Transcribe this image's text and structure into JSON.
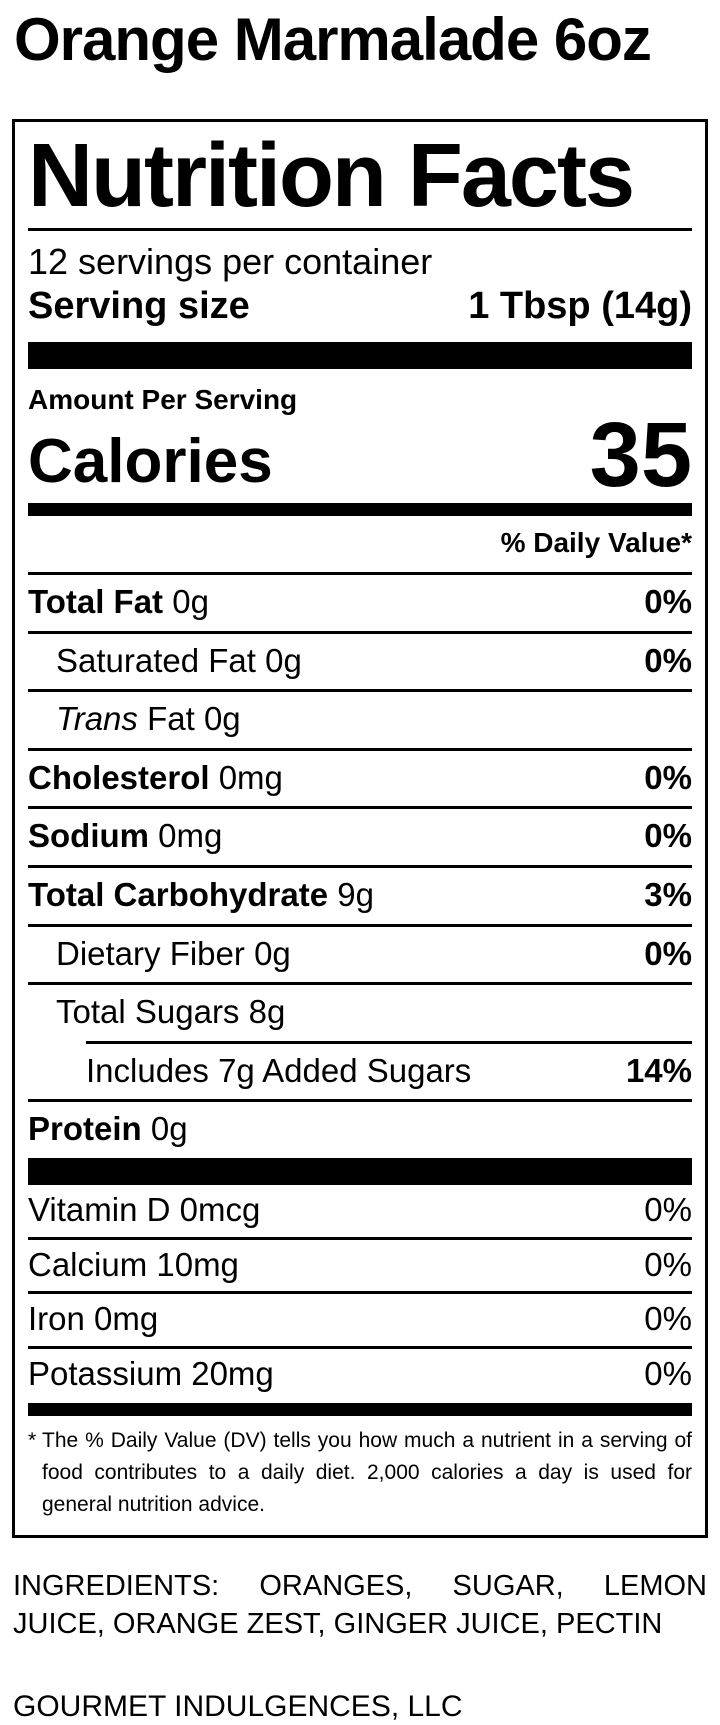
{
  "product": {
    "title": "Orange Marmalade 6oz"
  },
  "label": {
    "heading": "Nutrition Facts",
    "servings_per_container": "12 servings per container",
    "serving_size_label": "Serving size",
    "serving_size_value": "1 Tbsp (14g)",
    "amount_per_serving": "Amount Per Serving",
    "calories_label": "Calories",
    "calories_value": "35",
    "daily_value_header": "% Daily Value*",
    "rows": [
      {
        "label": "Total Fat",
        "amount": "0g",
        "dv": "0%",
        "indent": 0,
        "bold": true,
        "dv_bold": true,
        "rule": "full"
      },
      {
        "label": "Saturated Fat",
        "amount": "0g",
        "dv": "0%",
        "indent": 1,
        "bold": false,
        "dv_bold": true,
        "rule": "full"
      },
      {
        "label_italic": "Trans",
        "label": " Fat",
        "amount": "0g",
        "dv": "",
        "indent": 1,
        "bold": false,
        "dv_bold": false,
        "rule": "full"
      },
      {
        "label": "Cholesterol",
        "amount": "0mg",
        "dv": "0%",
        "indent": 0,
        "bold": true,
        "dv_bold": true,
        "rule": "full"
      },
      {
        "label": "Sodium",
        "amount": "0mg",
        "dv": "0%",
        "indent": 0,
        "bold": true,
        "dv_bold": true,
        "rule": "full"
      },
      {
        "label": "Total Carbohydrate",
        "amount": "9g",
        "dv": "3%",
        "indent": 0,
        "bold": true,
        "dv_bold": true,
        "rule": "full"
      },
      {
        "label": "Dietary Fiber",
        "amount": "0g",
        "dv": "0%",
        "indent": 1,
        "bold": false,
        "dv_bold": true,
        "rule": "full"
      },
      {
        "label": "Total Sugars",
        "amount": "8g",
        "dv": "",
        "indent": 1,
        "bold": false,
        "dv_bold": false,
        "rule": "full"
      },
      {
        "label": "Includes 7g Added Sugars",
        "amount": "",
        "dv": "14%",
        "indent": 2,
        "bold": false,
        "dv_bold": true,
        "rule": "short"
      },
      {
        "label": "Protein",
        "amount": "0g",
        "dv": "",
        "indent": 0,
        "bold": true,
        "dv_bold": false,
        "rule": "full"
      }
    ],
    "micronutrients": [
      {
        "label": "Vitamin D 0mcg",
        "dv": "0%"
      },
      {
        "label": "Calcium 10mg",
        "dv": "0%"
      },
      {
        "label": "Iron 0mg",
        "dv": "0%"
      },
      {
        "label": "Potassium 20mg",
        "dv": "0%"
      }
    ],
    "footnote": {
      "marker": "*",
      "text": "The % Daily Value (DV) tells you how much a nutrient in a serving of food contributes to a daily diet. 2,000 calories a day is used for general nutrition advice."
    }
  },
  "ingredients": "INGREDIENTS: ORANGES, SUGAR, LEMON JUICE, ORANGE ZEST, GINGER JUICE, PECTIN",
  "manufacturer": "GOURMET INDULGENCES, LLC",
  "colors": {
    "text": "#000000",
    "background": "#ffffff"
  }
}
